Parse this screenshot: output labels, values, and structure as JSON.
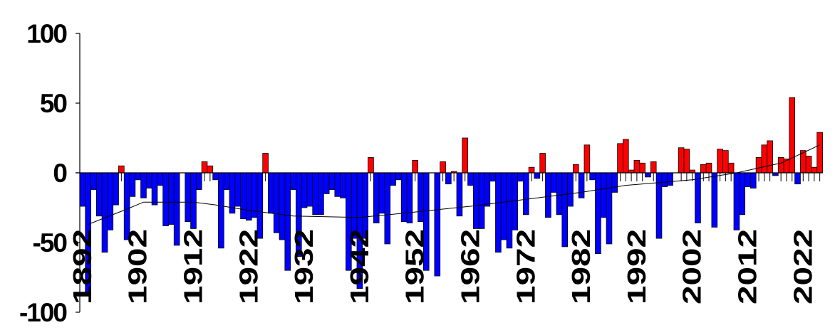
{
  "chart_data": {
    "type": "bar",
    "title": "",
    "xlabel": "",
    "ylabel": "",
    "ylim": [
      -100,
      100
    ],
    "yticks": [
      "100",
      "50",
      "0",
      "-50",
      "-100"
    ],
    "ytick_values": [
      100,
      50,
      0,
      -50,
      -100
    ],
    "xtick_labels": [
      "1892",
      "1902",
      "1912",
      "1922",
      "1932",
      "1942",
      "1952",
      "1962",
      "1972",
      "1982",
      "1992",
      "2002",
      "2012",
      "2022"
    ],
    "x_start": 1892,
    "grid": false,
    "legend": "none",
    "colors": {
      "positive": "#ff0000",
      "negative": "#0000ff",
      "trend": "#000000",
      "axis": "#000000"
    },
    "values": [
      -24,
      -87,
      -12,
      -31,
      -57,
      -41,
      -23,
      5,
      -48,
      -17,
      -5,
      -18,
      -11,
      -23,
      -9,
      -38,
      -37,
      -52,
      0,
      -35,
      -40,
      -12,
      8,
      5,
      -5,
      -54,
      -12,
      -29,
      -24,
      -33,
      -34,
      -32,
      -47,
      14,
      -29,
      -43,
      -48,
      -70,
      -12,
      -60,
      -25,
      -24,
      -30,
      -30,
      -15,
      -12,
      -17,
      -18,
      -70,
      -47,
      -83,
      -47,
      11,
      -36,
      -29,
      -51,
      -9,
      -5,
      -35,
      -36,
      9,
      -35,
      -70,
      0,
      -74,
      8,
      -8,
      1,
      -31,
      25,
      -9,
      -40,
      -40,
      -24,
      -6,
      -57,
      -48,
      -54,
      -41,
      -6,
      -30,
      4,
      -4,
      14,
      -32,
      -14,
      -30,
      -53,
      -24,
      6,
      -18,
      20,
      -5,
      -58,
      -32,
      -51,
      -14,
      21,
      24,
      2,
      9,
      7,
      -3,
      8,
      -47,
      -10,
      -9,
      0,
      18,
      17,
      2,
      -36,
      6,
      7,
      -39,
      17,
      16,
      7,
      -41,
      -30,
      -10,
      -11,
      11,
      20,
      23,
      -2,
      11,
      10,
      54,
      -8,
      16,
      12,
      4,
      29
    ],
    "trend": {
      "x": [
        1893,
        1900,
        1903,
        1912,
        1916,
        1922,
        1926,
        1930,
        1942,
        1950,
        1957,
        1962,
        1972,
        1982,
        1990,
        2002,
        2010,
        2018,
        2025
      ],
      "y": [
        -37,
        -26,
        -21,
        -21,
        -23,
        -27,
        -29,
        -31,
        -32,
        -29,
        -26,
        -24,
        -19,
        -14,
        -9,
        -5,
        0,
        7,
        20
      ]
    }
  }
}
